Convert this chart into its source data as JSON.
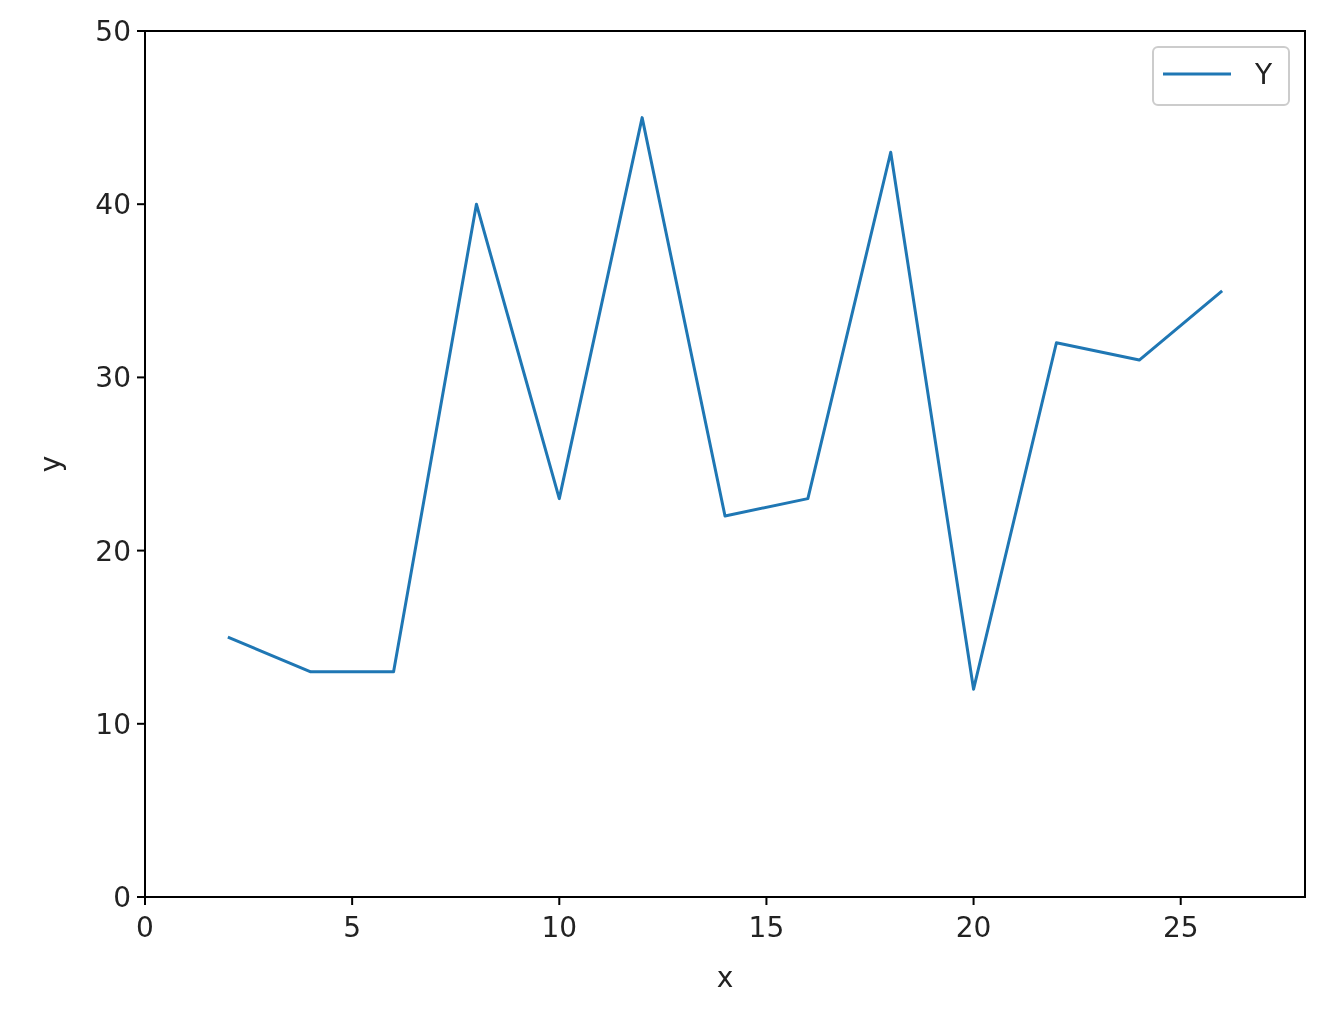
{
  "chart_data": {
    "type": "line",
    "xlabel": "x",
    "ylabel": "y",
    "series": [
      {
        "name": "Y",
        "color": "#1f77b4",
        "x": [
          2,
          4,
          6,
          8,
          10,
          12,
          14,
          16,
          18,
          20,
          22,
          24,
          26
        ],
        "values": [
          15,
          13,
          13,
          40,
          23,
          45,
          22,
          23,
          43,
          12,
          32,
          31,
          35
        ]
      }
    ],
    "xlim": [
      0,
      28
    ],
    "xticks": [
      0,
      5,
      10,
      15,
      20,
      25
    ],
    "ylim": [
      0,
      50
    ],
    "yticks": [
      0,
      10,
      20,
      30,
      40,
      50
    ],
    "legend": "top right",
    "grid": false
  }
}
